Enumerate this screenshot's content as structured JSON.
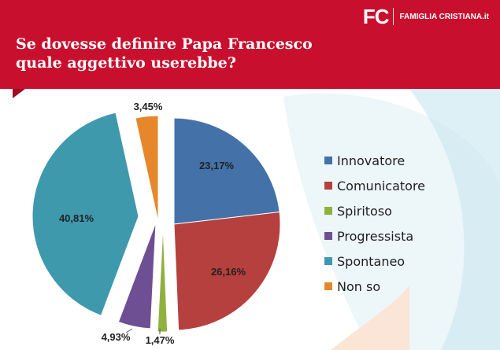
{
  "header": {
    "title_line1": "Se dovesse definire Papa Francesco",
    "title_line2": "quale aggettivo userebbe?",
    "logo_mark": "FC",
    "logo_name": "FAMIGLIA CRISTIANA.it",
    "color": "#c8102e"
  },
  "chart_data": {
    "type": "pie",
    "title": "Se dovesse definire Papa Francesco quale aggettivo userebbe?",
    "unit": "%",
    "legend_position": "right",
    "slices": [
      {
        "label": "Innovatore",
        "value": 23.17,
        "value_label": "23,17%",
        "color": "#4472a8"
      },
      {
        "label": "Comunicatore",
        "value": 26.16,
        "value_label": "26,16%",
        "color": "#b5403d"
      },
      {
        "label": "Spiritoso",
        "value": 1.47,
        "value_label": "1,47%",
        "color": "#8fb13f"
      },
      {
        "label": "Progressista",
        "value": 4.93,
        "value_label": "4,93%",
        "color": "#6e4f94"
      },
      {
        "label": "Spontaneo",
        "value": 40.81,
        "value_label": "40,81%",
        "color": "#3f99ad"
      },
      {
        "label": "Non so",
        "value": 3.45,
        "value_label": "3,45%",
        "color": "#e6872c"
      }
    ]
  }
}
